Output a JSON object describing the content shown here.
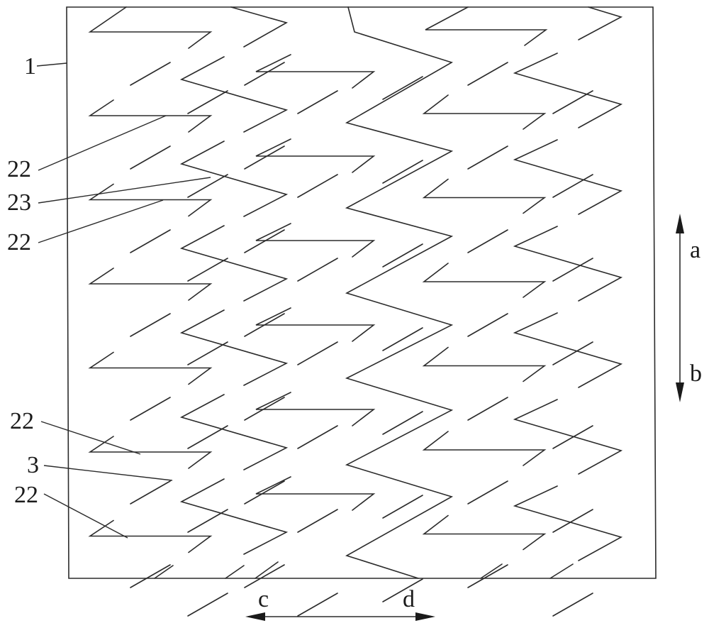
{
  "labels": {
    "plate": "1",
    "strip_top_a": "22",
    "gap": "23",
    "strip_top_b": "22",
    "strip_bottom_a": "22",
    "slot": "3",
    "strip_bottom_b": "22",
    "dir_up": "a",
    "dir_down": "b",
    "dir_left": "c",
    "dir_right": "d"
  }
}
